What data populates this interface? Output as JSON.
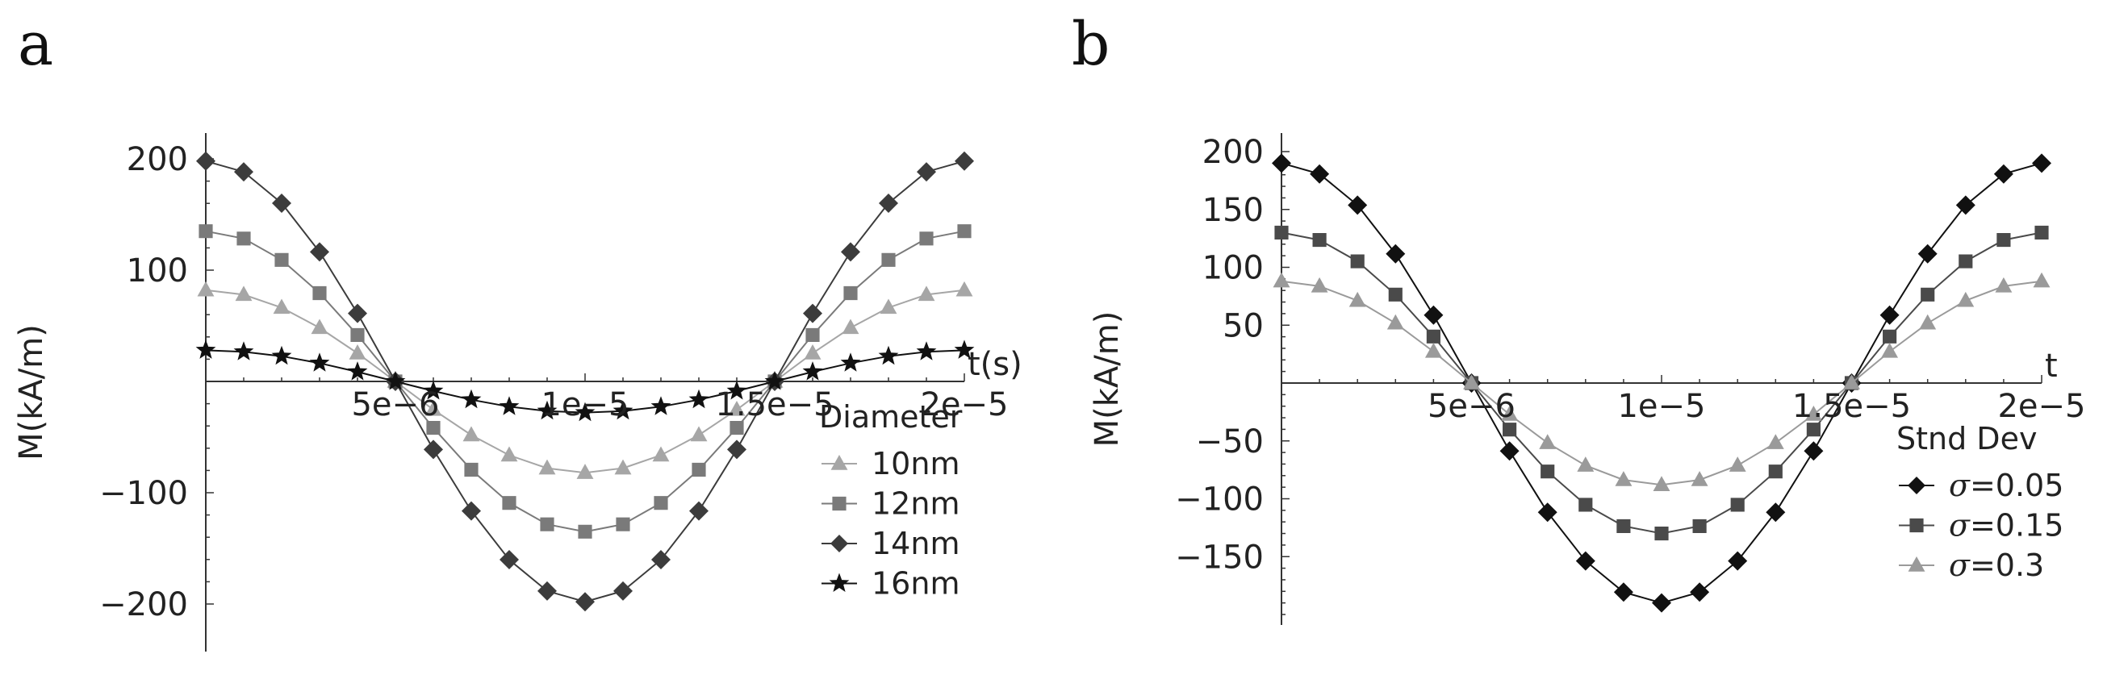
{
  "panels": {
    "a": {
      "letter": "a"
    },
    "b": {
      "letter": "b"
    }
  },
  "chart_data": [
    {
      "type": "line",
      "panel": "a",
      "xlabel": "t(s)",
      "ylabel": "M(kA/m)",
      "xlim": [
        0,
        2e-05
      ],
      "ylim": [
        -200,
        200
      ],
      "x_ticks": [
        5e-06,
        1e-05,
        1.5e-05,
        2e-05
      ],
      "x_tick_labels": [
        "5e−6",
        "1e−5",
        "1.5e−5",
        "2e−5"
      ],
      "y_ticks": [
        -200,
        -100,
        100,
        200
      ],
      "y_tick_labels": [
        "−200",
        "−100",
        "100",
        "200"
      ],
      "legend_title": "Diameter",
      "legend_position": "bottom-right",
      "x": [
        0,
        1e-06,
        2e-06,
        3e-06,
        4e-06,
        5e-06,
        6e-06,
        7e-06,
        8e-06,
        9e-06,
        1e-05,
        1.1e-05,
        1.2e-05,
        1.3e-05,
        1.4e-05,
        1.5e-05,
        1.6e-05,
        1.7e-05,
        1.8e-05,
        1.9e-05,
        2e-05
      ],
      "series": [
        {
          "name": "10nm",
          "marker": "triangle",
          "color": "#a6a6a6",
          "amplitude": 82
        },
        {
          "name": "12nm",
          "marker": "square",
          "color": "#7a7a7a",
          "amplitude": 135
        },
        {
          "name": "14nm",
          "marker": "diamond",
          "color": "#3c3c3c",
          "amplitude": 198
        },
        {
          "name": "16nm",
          "marker": "star",
          "color": "#111111",
          "amplitude": 28
        }
      ]
    },
    {
      "type": "line",
      "panel": "b",
      "xlabel": "t",
      "ylabel": "M(kA/m)",
      "xlim": [
        0,
        2e-05
      ],
      "ylim": [
        -195,
        200
      ],
      "x_ticks": [
        5e-06,
        1e-05,
        1.5e-05,
        2e-05
      ],
      "x_tick_labels": [
        "5e−6",
        "1e−5",
        "1.5e−5",
        "2e−5"
      ],
      "y_ticks": [
        -150,
        -100,
        -50,
        50,
        100,
        150,
        200
      ],
      "y_tick_labels": [
        "−150",
        "−100",
        "−50",
        "50",
        "100",
        "150",
        "200"
      ],
      "legend_title": "Stnd Dev",
      "legend_position": "bottom-right",
      "x": [
        0,
        1e-06,
        2e-06,
        3e-06,
        4e-06,
        5e-06,
        6e-06,
        7e-06,
        8e-06,
        9e-06,
        1e-05,
        1.1e-05,
        1.2e-05,
        1.3e-05,
        1.4e-05,
        1.5e-05,
        1.6e-05,
        1.7e-05,
        1.8e-05,
        1.9e-05,
        2e-05
      ],
      "series": [
        {
          "name": "σ=0.05",
          "symbol": "σ",
          "value": "=0.05",
          "marker": "diamond",
          "color": "#111111",
          "amplitude": 190
        },
        {
          "name": "σ=0.15",
          "symbol": "σ",
          "value": "=0.15",
          "marker": "square",
          "color": "#4a4a4a",
          "amplitude": 130
        },
        {
          "name": "σ=0.3",
          "symbol": "σ",
          "value": "=0.3",
          "marker": "triangle",
          "color": "#9a9a9a",
          "amplitude": 88
        }
      ]
    }
  ]
}
